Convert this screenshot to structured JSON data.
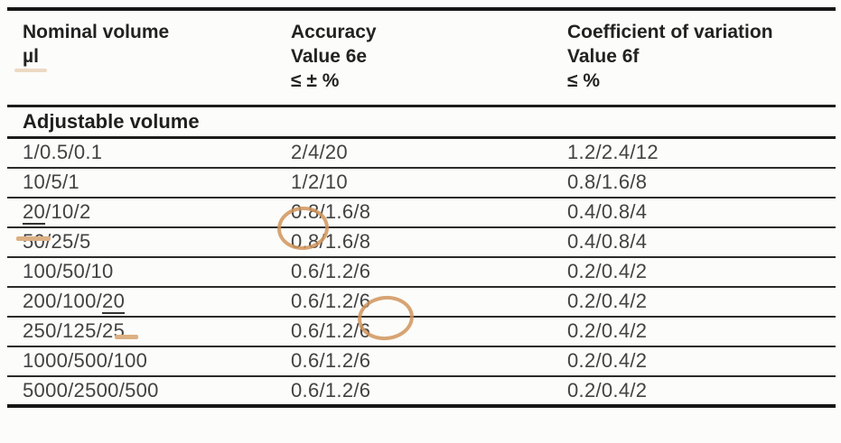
{
  "table": {
    "header": {
      "col1": {
        "line1": "Nominal volume",
        "line2": "µl"
      },
      "col2": {
        "line1": "Accuracy",
        "line2": "Value 6e",
        "line3": "≤ ± %"
      },
      "col3": {
        "line1": "Coefficient of variation",
        "line2": "Value 6f",
        "line3": "≤ %"
      }
    },
    "section": {
      "title": "Adjustable volume"
    },
    "rows": [
      {
        "nominal": {
          "pre": "1/0.5/0.1",
          "marked": "",
          "post": ""
        },
        "accuracy": "2/4/20",
        "cv": "1.2/2.4/12"
      },
      {
        "nominal": {
          "pre": "10/5/1",
          "marked": "",
          "post": ""
        },
        "accuracy": "1/2/10",
        "cv": "0.8/1.6/8"
      },
      {
        "nominal": {
          "pre": "",
          "marked": "20",
          "post": "/10/2"
        },
        "accuracy": "0.8/1.6/8",
        "cv": "0.4/0.8/4"
      },
      {
        "nominal": {
          "pre": "50/25/5",
          "marked": "",
          "post": ""
        },
        "accuracy": "0.8/1.6/8",
        "cv": "0.4/0.8/4"
      },
      {
        "nominal": {
          "pre": "100/50/10",
          "marked": "",
          "post": ""
        },
        "accuracy": "0.6/1.2/6",
        "cv": "0.2/0.4/2"
      },
      {
        "nominal": {
          "pre": "200/100/",
          "marked": "20",
          "post": ""
        },
        "accuracy": "0.6/1.2/6",
        "cv": "0.2/0.4/2"
      },
      {
        "nominal": {
          "pre": "250/125/25",
          "marked": "",
          "post": ""
        },
        "accuracy": "0.6/1.2/6",
        "cv": "0.2/0.4/2"
      },
      {
        "nominal": {
          "pre": "1000/500/100",
          "marked": "",
          "post": ""
        },
        "accuracy": "0.6/1.2/6",
        "cv": "0.2/0.4/2"
      },
      {
        "nominal": {
          "pre": "5000/2500/500",
          "marked": "",
          "post": ""
        },
        "accuracy": "0.6/1.2/6",
        "cv": "0.2/0.4/2"
      }
    ]
  },
  "annotations": {
    "pen_color": "#d0945a",
    "highlight_color": "#dcb083",
    "circled_values": [
      "0.8",
      "6"
    ],
    "underlined_values": [
      "20",
      "20"
    ]
  }
}
